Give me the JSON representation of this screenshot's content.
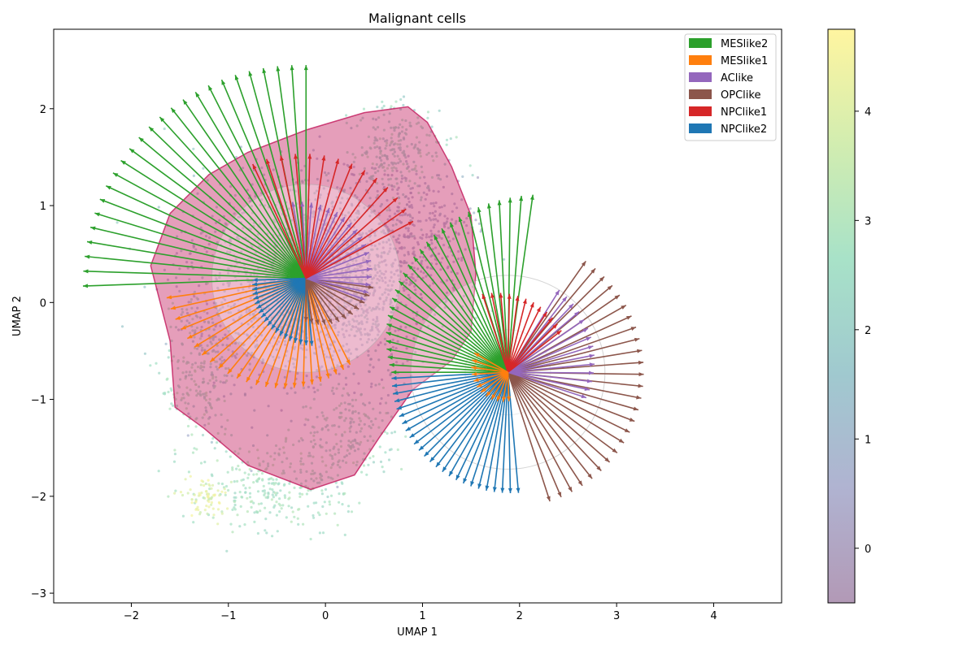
{
  "chart_data": {
    "type": "scatter",
    "title": "Malignant cells",
    "xlabel": "UMAP 1",
    "ylabel": "UMAP 2",
    "xlim": [
      -2.8,
      4.7
    ],
    "ylim": [
      -3.1,
      2.82
    ],
    "x_ticks": [
      -2,
      -1,
      0,
      1,
      2,
      3,
      4
    ],
    "y_ticks": [
      -3,
      -2,
      -1,
      0,
      1,
      2
    ],
    "grid": false,
    "legend_position": "top-right",
    "legend": [
      {
        "name": "MESlike2",
        "color": "#2ca02c"
      },
      {
        "name": "MESlike1",
        "color": "#ff7f0e"
      },
      {
        "name": "AClike",
        "color": "#9467bd"
      },
      {
        "name": "OPClike",
        "color": "#8c564b"
      },
      {
        "name": "NPClike1",
        "color": "#d62728"
      },
      {
        "name": "NPClike2",
        "color": "#1f77b4"
      }
    ],
    "colorbar": {
      "min": -0.5,
      "max": 4.75,
      "ticks": [
        0,
        1,
        2,
        3,
        4
      ],
      "colors": [
        "#b299b6",
        "#b0b3d1",
        "#a0c9cf",
        "#a8e2c8",
        "#d2edb0",
        "#fff5a0"
      ]
    },
    "hull": {
      "color": "#c2185b",
      "points": [
        [
          -1.8,
          0.38
        ],
        [
          -1.6,
          0.92
        ],
        [
          -1.2,
          1.32
        ],
        [
          -0.8,
          1.55
        ],
        [
          -0.2,
          1.78
        ],
        [
          0.4,
          1.96
        ],
        [
          0.85,
          2.02
        ],
        [
          1.05,
          1.86
        ],
        [
          1.3,
          1.4
        ],
        [
          1.5,
          0.9
        ],
        [
          1.55,
          0.3
        ],
        [
          1.5,
          -0.3
        ],
        [
          1.3,
          -0.6
        ],
        [
          0.9,
          -0.9
        ],
        [
          0.55,
          -1.4
        ],
        [
          0.3,
          -1.78
        ],
        [
          -0.15,
          -1.93
        ],
        [
          -0.8,
          -1.68
        ],
        [
          -1.25,
          -1.3
        ],
        [
          -1.55,
          -1.08
        ],
        [
          -1.6,
          -0.4
        ]
      ]
    },
    "clusters": [
      {
        "center": [
          -0.2,
          0.25
        ],
        "circle_radius": 0.97,
        "inner_radius": 0.22,
        "ray_groups": [
          {
            "name": "MESlike2",
            "color": "#2ca02c",
            "from_deg": 90,
            "to_deg": 182,
            "n": 25,
            "len_from": 2.2,
            "len_to": 2.3
          },
          {
            "name": "MESlike1",
            "color": "#ff7f0e",
            "from_deg": 188,
            "to_deg": 297,
            "n": 24,
            "len_from": 1.45,
            "len_to": 1.0
          },
          {
            "name": "NPClike2",
            "color": "#1f77b4",
            "from_deg": 182,
            "to_deg": 275,
            "n": 20,
            "len_from": 0.55,
            "len_to": 0.7
          },
          {
            "name": "OPClike",
            "color": "#8c564b",
            "from_deg": 270,
            "to_deg": 352,
            "n": 12,
            "len_from": 0.45,
            "len_to": 0.7
          },
          {
            "name": "AClike",
            "color": "#9467bd",
            "from_deg": -20,
            "to_deg": 100,
            "n": 18,
            "len_from": 0.65,
            "len_to": 0.8
          },
          {
            "name": "NPClike1",
            "color": "#d62728",
            "from_deg": 28,
            "to_deg": 115,
            "n": 14,
            "len_from": 1.25,
            "len_to": 1.3
          }
        ]
      },
      {
        "center": [
          1.88,
          -0.72
        ],
        "circle_radius": 1.0,
        "inner_radius": 0.2,
        "ray_groups": [
          {
            "name": "MESlike2",
            "color": "#2ca02c",
            "from_deg": 82,
            "to_deg": 180,
            "n": 28,
            "len_from": 1.85,
            "len_to": 1.2
          },
          {
            "name": "NPClike2",
            "color": "#1f77b4",
            "from_deg": 183,
            "to_deg": 275,
            "n": 25,
            "len_from": 1.2,
            "len_to": 1.25
          },
          {
            "name": "OPClike",
            "color": "#8c564b",
            "from_deg": -72,
            "to_deg": 55,
            "n": 26,
            "len_from": 1.4,
            "len_to": 1.4
          },
          {
            "name": "AClike",
            "color": "#9467bd",
            "from_deg": -18,
            "to_deg": 58,
            "n": 14,
            "len_from": 0.85,
            "len_to": 1.0
          },
          {
            "name": "NPClike1",
            "color": "#d62728",
            "from_deg": 38,
            "to_deg": 108,
            "n": 12,
            "len_from": 0.7,
            "len_to": 0.85
          },
          {
            "name": "MESlike1",
            "color": "#ff7f0e",
            "from_deg": 150,
            "to_deg": 272,
            "n": 12,
            "len_from": 0.4,
            "len_to": 0.3
          }
        ]
      }
    ]
  }
}
